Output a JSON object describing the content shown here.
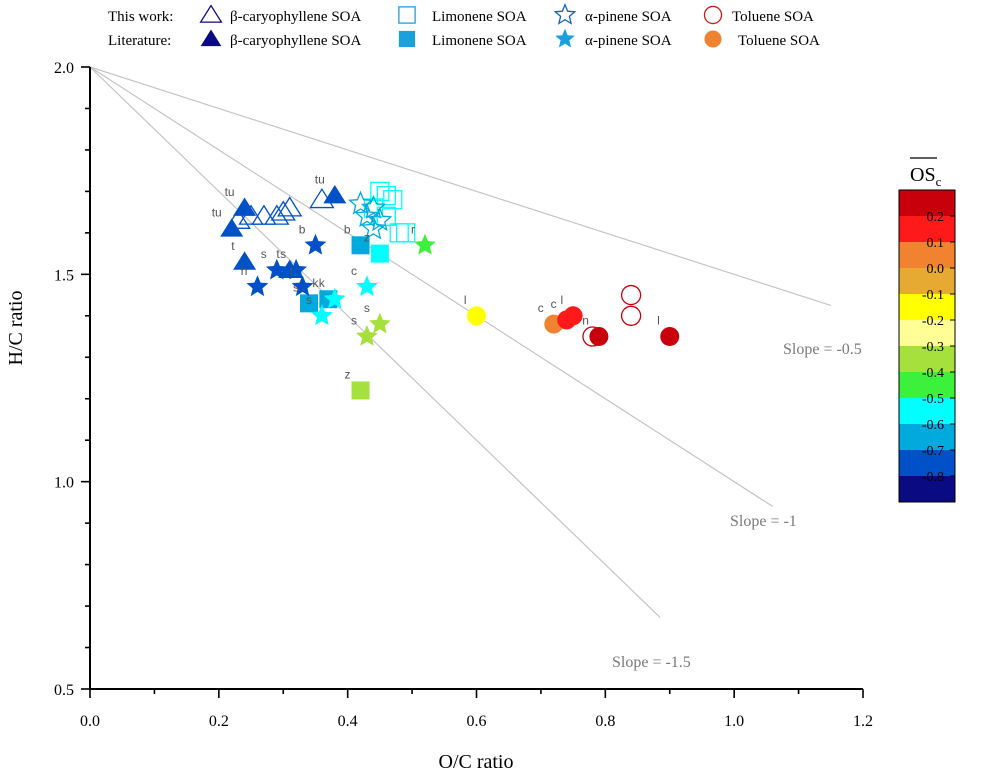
{
  "chart_data": {
    "type": "scatter",
    "title": "",
    "xlabel": "O/C ratio",
    "ylabel": "H/C ratio",
    "xlim": [
      0.0,
      1.2
    ],
    "ylim": [
      0.5,
      2.0
    ],
    "x_ticks": [
      0.0,
      0.2,
      0.4,
      0.6,
      0.8,
      1.0,
      1.2
    ],
    "x_tick_labels": [
      "0.0",
      "0.2",
      "0.4",
      "0.6",
      "0.8",
      "1.0",
      "1.2"
    ],
    "y_ticks": [
      0.5,
      1.0,
      1.5,
      2.0
    ],
    "y_tick_labels": [
      "0.5",
      "1.0",
      "1.5",
      "2.0"
    ],
    "grid": false,
    "legend": {
      "position": "top",
      "row_labels": [
        "This work:",
        "Literature:"
      ],
      "entries": [
        {
          "label": "β-caryophyllene SOA",
          "marker": "triangle"
        },
        {
          "label": "Limonene SOA",
          "marker": "square"
        },
        {
          "label": "α-pinene SOA",
          "marker": "star"
        },
        {
          "label": "Toluene SOA",
          "marker": "circle"
        }
      ]
    },
    "slope_lines": [
      {
        "label": "Slope = -0.5",
        "slope": -0.5,
        "x_end": 1.15
      },
      {
        "label": "Slope = -1",
        "slope": -1,
        "x_end": 1.06
      },
      {
        "label": "Slope = -1.5",
        "slope": -1.5,
        "x_end": 0.885
      }
    ],
    "colorbar": {
      "title": "OS",
      "title_subscript": "c",
      "tick_labels": [
        "0.2",
        "0.1",
        "0.0",
        "-0.1",
        "-0.2",
        "-0.3",
        "-0.4",
        "-0.5",
        "-0.6",
        "-0.7",
        "-0.8"
      ],
      "colors": [
        "#c8000c",
        "#ff1a1a",
        "#f08230",
        "#e6aa32",
        "#ffff00",
        "#ffff96",
        "#a6e03c",
        "#3cf03c",
        "#00ffff",
        "#00aadc",
        "#0050c8",
        "#0a0a82"
      ]
    },
    "series": [
      {
        "name": "β-caryophyllene SOA (this work)",
        "marker": "triangle",
        "filled": false,
        "points": [
          {
            "x": 0.23,
            "y": 1.63,
            "os": -0.8
          },
          {
            "x": 0.27,
            "y": 1.64,
            "os": -0.8
          },
          {
            "x": 0.3,
            "y": 1.65,
            "os": -0.8
          },
          {
            "x": 0.31,
            "y": 1.66,
            "os": -0.8
          },
          {
            "x": 0.36,
            "y": 1.68,
            "os": -0.8
          },
          {
            "x": 0.29,
            "y": 1.64,
            "os": -0.8
          },
          {
            "x": 0.25,
            "y": 1.64,
            "os": -0.8
          }
        ]
      },
      {
        "name": "β-caryophyllene SOA (literature)",
        "marker": "triangle",
        "filled": true,
        "points": [
          {
            "x": 0.24,
            "y": 1.66,
            "os": -0.8,
            "label": "tu"
          },
          {
            "x": 0.22,
            "y": 1.61,
            "os": -0.8,
            "label": "tu"
          },
          {
            "x": 0.38,
            "y": 1.69,
            "os": -0.8,
            "label": "tu"
          },
          {
            "x": 0.24,
            "y": 1.53,
            "os": -0.8,
            "label": "t"
          },
          {
            "x": 0.31,
            "y": 1.51,
            "os": -0.8,
            "label": "t"
          }
        ]
      },
      {
        "name": "Limonene SOA (this work)",
        "marker": "square",
        "filled": false,
        "points": [
          {
            "x": 0.45,
            "y": 1.7,
            "os": -0.6
          },
          {
            "x": 0.46,
            "y": 1.69,
            "os": -0.6
          },
          {
            "x": 0.47,
            "y": 1.68,
            "os": -0.6
          },
          {
            "x": 0.44,
            "y": 1.66,
            "os": -0.6
          },
          {
            "x": 0.46,
            "y": 1.64,
            "os": -0.6
          },
          {
            "x": 0.48,
            "y": 1.6,
            "os": -0.6
          },
          {
            "x": 0.49,
            "y": 1.6,
            "os": -0.6
          }
        ]
      },
      {
        "name": "Limonene SOA (literature)",
        "marker": "square",
        "filled": true,
        "points": [
          {
            "x": 0.42,
            "y": 1.57,
            "os": -0.7,
            "label": "b"
          },
          {
            "x": 0.45,
            "y": 1.55,
            "os": -0.6,
            "label": "z"
          },
          {
            "x": 0.34,
            "y": 1.43,
            "os": -0.7,
            "label": "s"
          },
          {
            "x": 0.37,
            "y": 1.44,
            "os": -0.7,
            "label": "k"
          },
          {
            "x": 0.42,
            "y": 1.22,
            "os": -0.4,
            "label": "z"
          }
        ]
      },
      {
        "name": "α-pinene SOA (this work)",
        "marker": "star",
        "filled": false,
        "points": [
          {
            "x": 0.42,
            "y": 1.67,
            "os": -0.7
          },
          {
            "x": 0.44,
            "y": 1.66,
            "os": -0.7
          },
          {
            "x": 0.43,
            "y": 1.64,
            "os": -0.7
          },
          {
            "x": 0.45,
            "y": 1.63,
            "os": -0.7
          },
          {
            "x": 0.44,
            "y": 1.61,
            "os": -0.7
          }
        ]
      },
      {
        "name": "α-pinene SOA (literature)",
        "marker": "star",
        "filled": true,
        "points": [
          {
            "x": 0.35,
            "y": 1.57,
            "os": -0.8,
            "label": "b"
          },
          {
            "x": 0.29,
            "y": 1.51,
            "os": -0.8,
            "label": "s"
          },
          {
            "x": 0.26,
            "y": 1.47,
            "os": -0.8,
            "label": "h"
          },
          {
            "x": 0.32,
            "y": 1.51,
            "os": -0.8,
            "label": "s"
          },
          {
            "x": 0.33,
            "y": 1.47,
            "os": -0.8,
            "label": "i"
          },
          {
            "x": 0.43,
            "y": 1.47,
            "os": -0.6,
            "label": "c"
          },
          {
            "x": 0.38,
            "y": 1.44,
            "os": -0.6,
            "label": "k"
          },
          {
            "x": 0.36,
            "y": 1.4,
            "os": -0.6,
            "label": "s"
          },
          {
            "x": 0.45,
            "y": 1.38,
            "os": -0.4,
            "label": "s"
          },
          {
            "x": 0.43,
            "y": 1.35,
            "os": -0.4,
            "label": "s"
          },
          {
            "x": 0.52,
            "y": 1.57,
            "os": -0.5,
            "label": "r"
          }
        ]
      },
      {
        "name": "Toluene SOA (this work)",
        "marker": "circle",
        "filled": false,
        "points": [
          {
            "x": 0.84,
            "y": 1.45,
            "os": 0.2
          },
          {
            "x": 0.84,
            "y": 1.4,
            "os": 0.2
          },
          {
            "x": 0.78,
            "y": 1.35,
            "os": 0.2
          }
        ]
      },
      {
        "name": "Toluene SOA (literature)",
        "marker": "circle",
        "filled": true,
        "points": [
          {
            "x": 0.6,
            "y": 1.4,
            "os": -0.2,
            "label": "l"
          },
          {
            "x": 0.72,
            "y": 1.38,
            "os": 0.0,
            "label": "c"
          },
          {
            "x": 0.74,
            "y": 1.39,
            "os": 0.1,
            "label": "c"
          },
          {
            "x": 0.75,
            "y": 1.4,
            "os": 0.1,
            "label": "l"
          },
          {
            "x": 0.79,
            "y": 1.35,
            "os": 0.2,
            "label": "n"
          },
          {
            "x": 0.9,
            "y": 1.35,
            "os": 0.2,
            "label": "l"
          }
        ]
      }
    ]
  }
}
